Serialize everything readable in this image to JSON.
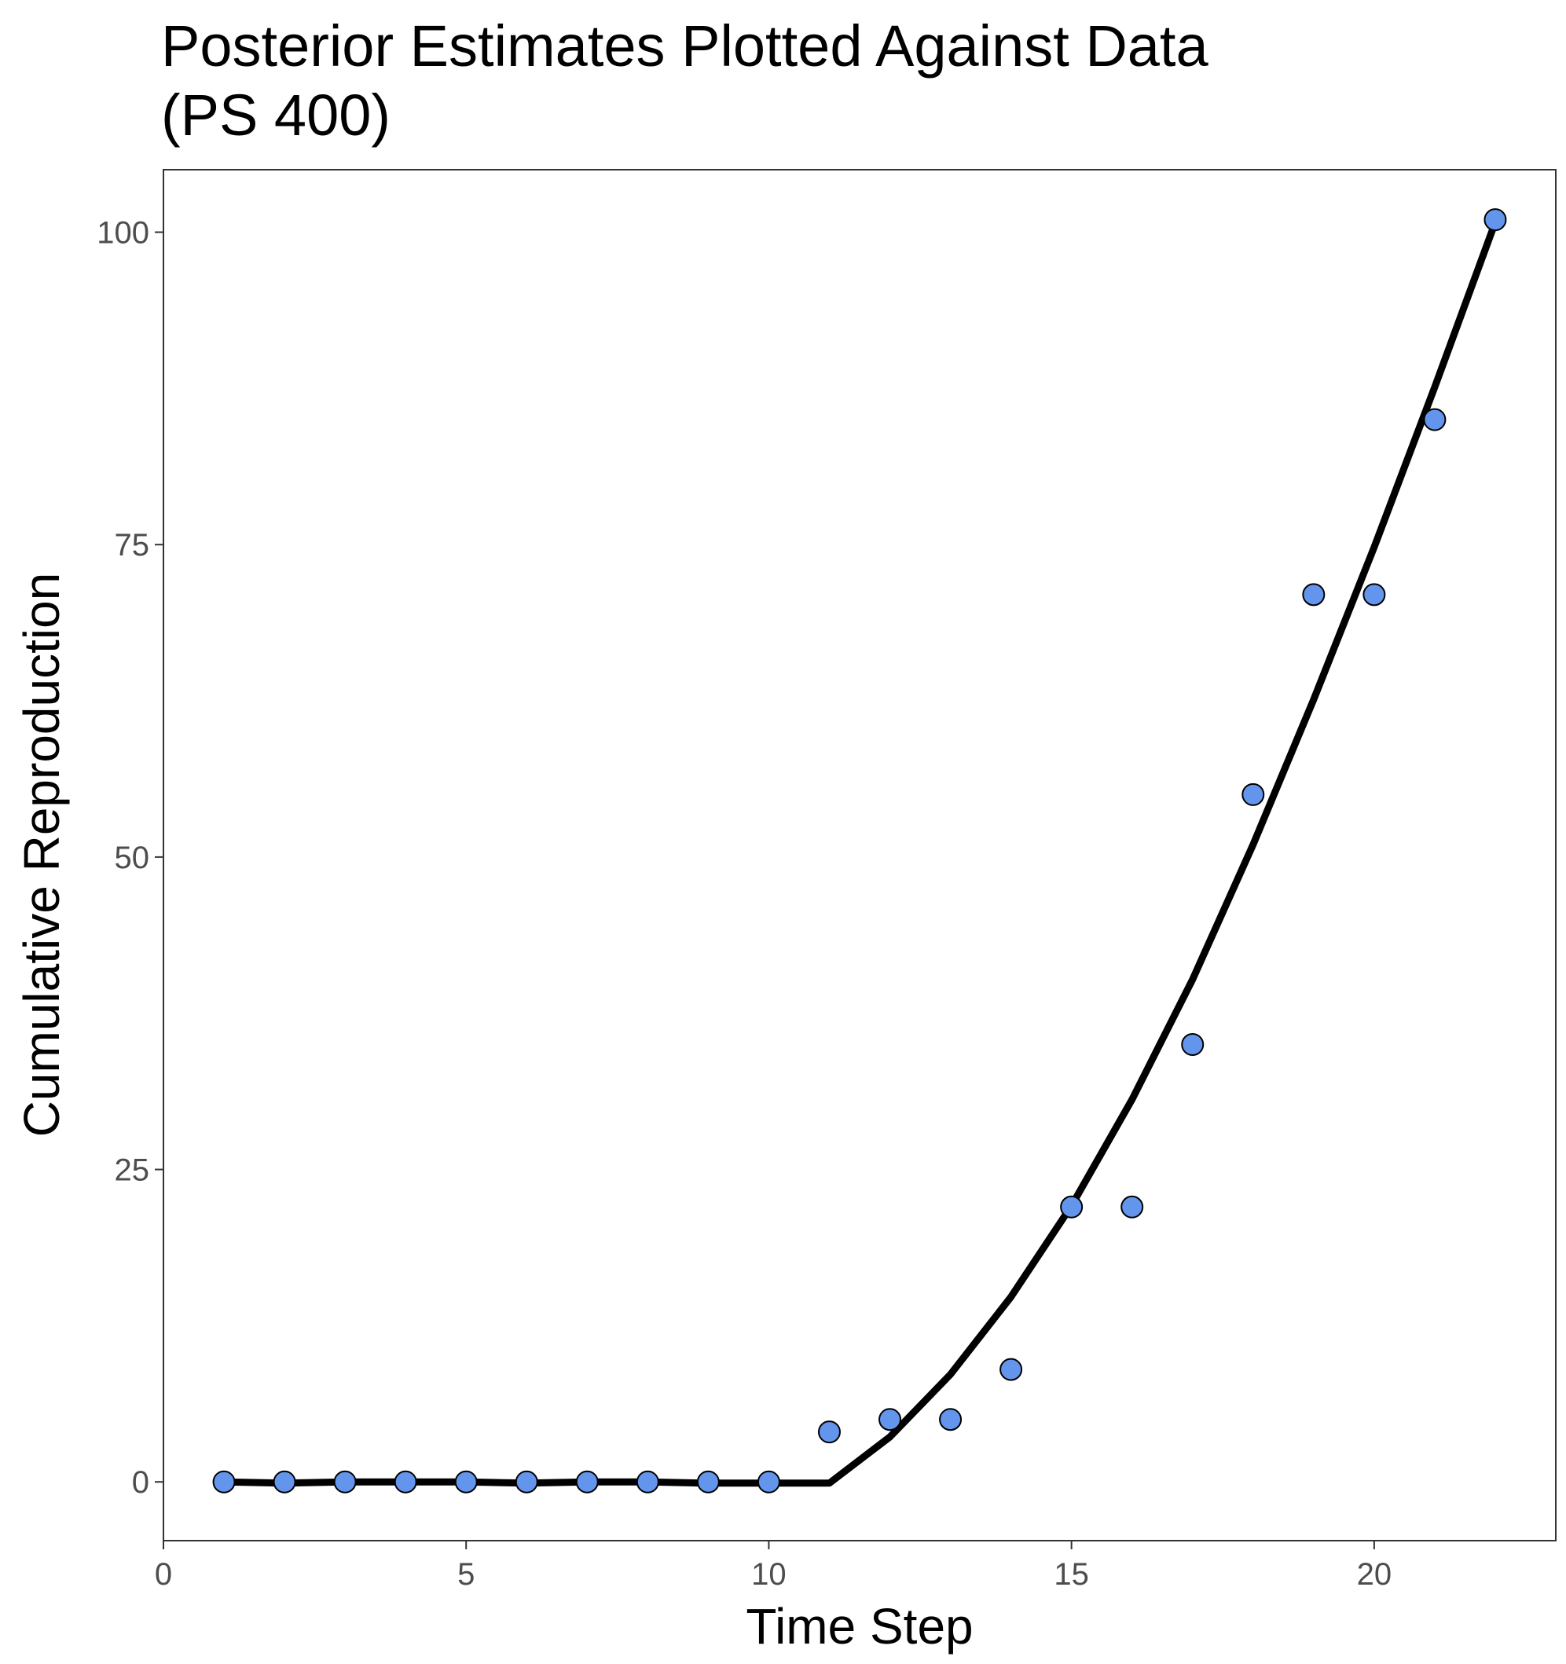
{
  "chart_data": {
    "type": "scatter",
    "title_lines": [
      "Posterior Estimates Plotted Against Data",
      "(PS 400)"
    ],
    "xlabel": "Time Step",
    "ylabel": "Cumulative Reproduction",
    "xlim": [
      0,
      23
    ],
    "ylim": [
      -4.7,
      105
    ],
    "x_ticks": [
      0,
      5,
      10,
      15,
      20
    ],
    "y_ticks": [
      0,
      25,
      50,
      75,
      100
    ],
    "x_tick_labels": [
      "0",
      "5",
      "10",
      "15",
      "20"
    ],
    "y_tick_labels": [
      "0",
      "25",
      "50",
      "75",
      "100"
    ],
    "grid": false,
    "legend": "none",
    "colors": {
      "points": "#6495ed",
      "point_stroke": "#000000",
      "line": "#000000"
    },
    "series": [
      {
        "kind": "points",
        "x": [
          1,
          2,
          3,
          4,
          5,
          6,
          7,
          8,
          9,
          10,
          11,
          12,
          13,
          14,
          15,
          16,
          17,
          18,
          19,
          20,
          21,
          22
        ],
        "y": [
          0,
          0,
          0,
          0,
          0,
          0,
          0,
          0,
          0,
          0,
          4,
          5,
          5,
          9,
          22,
          22,
          35,
          55,
          71,
          71,
          85,
          101
        ]
      },
      {
        "kind": "line",
        "x": [
          1,
          2,
          3,
          4,
          5,
          6,
          7,
          8,
          9,
          10,
          11,
          12,
          13,
          14,
          15,
          16,
          17,
          18,
          19,
          20,
          21,
          22
        ],
        "y": [
          0,
          -0.1,
          0,
          0,
          0,
          -0.1,
          0,
          0,
          -0.1,
          -0.1,
          -0.1,
          3.6,
          8.6,
          14.8,
          22.1,
          30.6,
          40.2,
          51,
          62.6,
          74.8,
          87.6,
          100.8
        ]
      }
    ]
  }
}
